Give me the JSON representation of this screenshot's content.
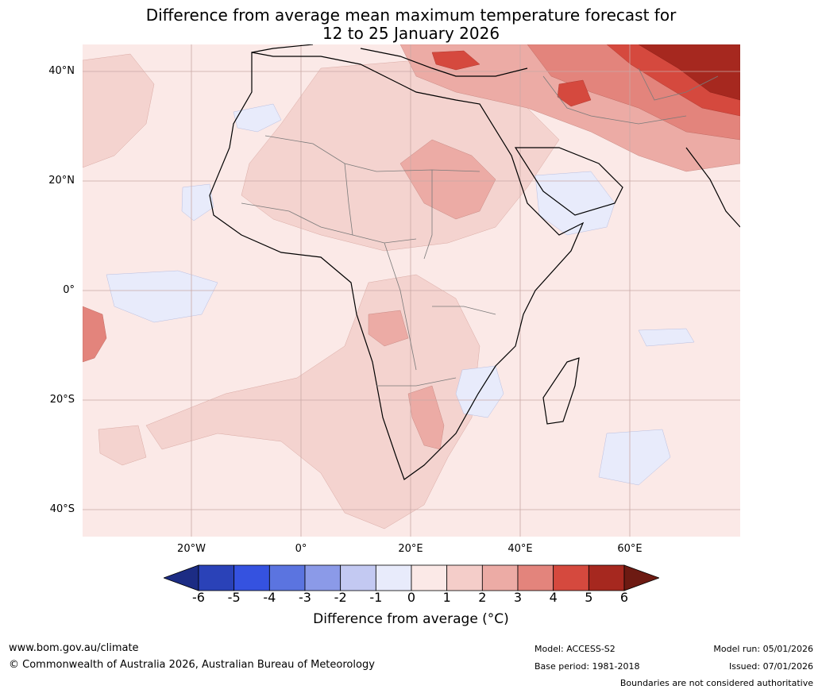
{
  "title": {
    "line1": "Difference from average mean maximum temperature forecast for",
    "line2": "12 to 25 January 2026"
  },
  "map": {
    "region": "Africa and surrounding oceans",
    "lat_labels": [
      "40°N",
      "20°N",
      "0°",
      "20°S",
      "40°S"
    ],
    "lon_labels": [
      "20°W",
      "0°",
      "20°E",
      "40°E",
      "60°E"
    ],
    "highlights": {
      "warmest": "Middle East, Central Asia and Turkey (+3 to +6)",
      "cool": "East Africa / Somalia, Mozambique and central Atlantic (-1 to 0)"
    }
  },
  "legend": {
    "ticks": [
      "-6",
      "-5",
      "-4",
      "-3",
      "-2",
      "-1",
      "0",
      "1",
      "2",
      "3",
      "4",
      "5",
      "6"
    ],
    "colors": [
      "#1c2c84",
      "#2a42b8",
      "#3552e0",
      "#5b74e0",
      "#8b9ae8",
      "#c3c9f2",
      "#e8ebfb",
      "#fbe9e7",
      "#f4cdc9",
      "#ecaba5",
      "#e3847c",
      "#d5493e",
      "#a6281f",
      "#6d1a12"
    ],
    "label": "Difference from average (°C)"
  },
  "footer": {
    "website": "www.bom.gov.au/climate",
    "copyright": "© Commonwealth of Australia 2026, Australian Bureau of Meteorology",
    "model": "Model: ACCESS-S2",
    "base_period": "Base period: 1981-2018",
    "model_run": "Model run: 05/01/2026",
    "issued": "Issued: 07/01/2026",
    "disclaimer": "Boundaries are not considered authoritative"
  }
}
